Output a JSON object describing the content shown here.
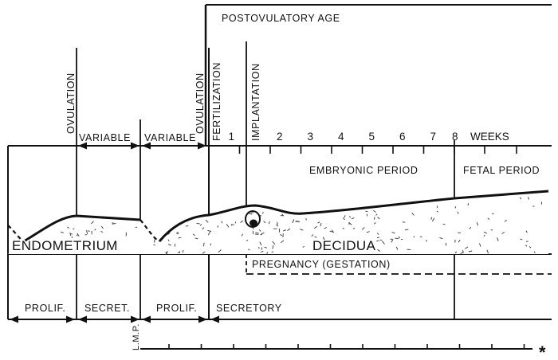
{
  "diagram": {
    "postovulatory_label": "POSTOVULATORY AGE",
    "vertical_labels": {
      "ovulation_1": "OVULATION",
      "ovulation_2": "OVULATION",
      "fertilization": "FERTILIZATION",
      "implantation": "IMPLANTATION",
      "lmp": "L.M.P."
    },
    "interval_labels": {
      "variable_1": "VARIABLE",
      "variable_2": "VARIABLE"
    },
    "week_ticks": [
      {
        "label": "1",
        "week": 1
      },
      {
        "label": "2",
        "week": 2
      },
      {
        "label": "3",
        "week": 3
      },
      {
        "label": "4",
        "week": 4
      },
      {
        "label": "5",
        "week": 5
      },
      {
        "label": "6",
        "week": 6
      },
      {
        "label": "7",
        "week": 7
      },
      {
        "label": "8",
        "week": 8
      }
    ],
    "weeks_label": "WEEKS",
    "period_labels": {
      "embryonic": "EMBRYONIC PERIOD",
      "fetal": "FETAL PERIOD"
    },
    "tissue_labels": {
      "endometrium": "ENDOMETRIUM",
      "decidua": "DECIDUA"
    },
    "pregnancy_label": "PREGNANCY (GESTATION)",
    "phase_labels": {
      "prolif_1": "PROLIF.",
      "secret": "SECRET.",
      "prolif_2": "PROLIF.",
      "secretory": "SECRETORY"
    },
    "asterisk": "*"
  }
}
